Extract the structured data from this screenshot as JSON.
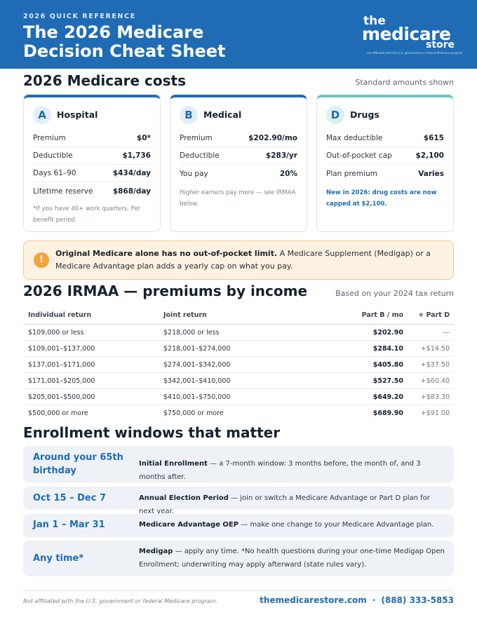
{
  "header": {
    "eyebrow": "2026 QUICK REFERENCE",
    "title_line1": "The 2026 Medicare",
    "title_line2": "Decision Cheat Sheet",
    "logo": {
      "the": "the",
      "medicare": "medicare",
      "store": "store",
      "tagline": "not affiliated with the U.S. government or federal Medicare program"
    }
  },
  "costs": {
    "title": "2026 Medicare costs",
    "note": "Standard amounts shown",
    "cards": [
      {
        "letter": "A",
        "name": "Hospital",
        "rows": [
          {
            "label": "Premium",
            "value": "$0*"
          },
          {
            "label": "Deductible",
            "value": "$1,736"
          },
          {
            "label": "Days 61–90",
            "value": "$434/day"
          },
          {
            "label": "Lifetime reserve",
            "value": "$868/day"
          }
        ],
        "note": "*If you have 40+ work quarters. Per benefit period."
      },
      {
        "letter": "B",
        "name": "Medical",
        "rows": [
          {
            "label": "Premium",
            "value": "$202.90/mo"
          },
          {
            "label": "Deductible",
            "value": "$283/yr"
          },
          {
            "label": "You pay",
            "value": "20%"
          }
        ],
        "note": "Higher earners pay more — see IRMAA below."
      },
      {
        "letter": "D",
        "name": "Drugs",
        "rows": [
          {
            "label": "Max deductible",
            "value": "$615"
          },
          {
            "label": "Out-of-pocket cap",
            "value": "$2,100"
          },
          {
            "label": "Plan premium",
            "value": "Varies"
          }
        ],
        "note": "New in 2026: drug costs are now capped at $2,100."
      }
    ]
  },
  "alert": {
    "icon": "!",
    "bold": "Original Medicare alone has no out-of-pocket limit.",
    "text": " A Medicare Supplement (Medigap) or a Medicare Advantage plan adds a yearly cap on what you pay."
  },
  "irmaa": {
    "title": "2026 IRMAA — premiums by income",
    "note": "Based on your 2024 tax return",
    "headers": [
      "Individual return",
      "Joint return",
      "Part B / mo",
      "+ Part D"
    ],
    "rows": [
      [
        "$109,000 or less",
        "$218,000 or less",
        "$202.90",
        "—"
      ],
      [
        "$109,001–$137,000",
        "$218,001–$274,000",
        "$284.10",
        "+$14.50"
      ],
      [
        "$137,001–$171,000",
        "$274,001–$342,000",
        "$405.80",
        "+$37.50"
      ],
      [
        "$171,001–$205,000",
        "$342,001–$410,000",
        "$527.50",
        "+$60.40"
      ],
      [
        "$205,001–$500,000",
        "$410,001–$750,000",
        "$649.20",
        "+$83.30"
      ],
      [
        "$500,000 or more",
        "$750,000 or more",
        "$689.90",
        "+$91.00"
      ]
    ]
  },
  "enrollment": {
    "title": "Enrollment windows that matter",
    "windows": [
      {
        "date": "Around your 65th birthday",
        "name": "Initial Enrollment",
        "desc": " — a 7-month window: 3 months before, the month of, and 3 months after."
      },
      {
        "date": "Oct 15 – Dec 7",
        "name": "Annual Election Period",
        "desc": " — join or switch a Medicare Advantage or Part D plan for next year."
      },
      {
        "date": "Jan 1 – Mar 31",
        "name": "Medicare Advantage OEP",
        "desc": " — make one change to your Medicare Advantage plan."
      },
      {
        "date": "Any time*",
        "name": "Medigap",
        "desc": " — apply any time. *No health questions during your one-time Medigap Open Enrollment; underwriting may apply afterward (state rules vary)."
      }
    ]
  },
  "footer": {
    "disclaimer": "Not affiliated with the U.S. government or federal Medicare program.",
    "website": "themedicarestore.com",
    "separator": "·",
    "phone": "(888) 333-5853"
  }
}
